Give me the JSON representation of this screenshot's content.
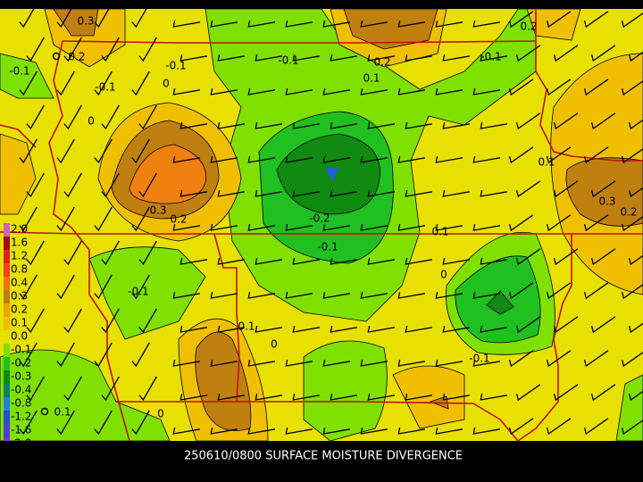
{
  "caption": "250610/0800 SURFACE MOISTURE DIVERGENCE",
  "legend": [
    "2.0",
    "1.6",
    "1.2",
    "0.8",
    "0.4",
    "0.3",
    "0.2",
    "0.1",
    "0.0",
    "-0.1",
    "-0.2",
    "-0.3",
    "-0.4",
    "-0.8",
    "-1.2",
    "-1.6",
    "-2.0"
  ],
  "contour_labels": [
    "0.3",
    "0.2",
    "-0.1",
    "-0.1",
    "0",
    "-0.1",
    "0",
    "-0.1",
    "0.2",
    "0.1",
    "-0.1",
    "0.2",
    "0.1",
    "0.3",
    "0.2",
    "0.3",
    "0.2",
    "-0.2",
    "-0.1",
    "0.1",
    "0",
    "-0.1",
    "0.1",
    "0",
    "-0.1",
    "0.1",
    "0"
  ]
}
